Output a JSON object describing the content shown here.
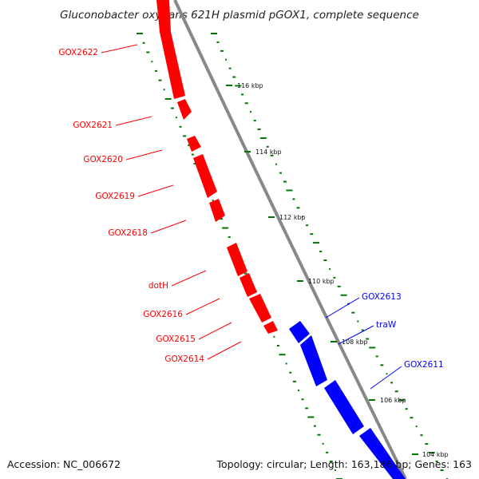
{
  "title": "Gluconobacter oxydans 621H plasmid pGOX1, complete sequence",
  "footer": {
    "accession": "Accession: NC_006672",
    "summary": "Topology: circular; Length: 163,186 bp; Genes: 163"
  },
  "colors": {
    "forward_strand": "#ff0000",
    "reverse_strand": "#0000ff",
    "backbone": "#888888",
    "gc_skew": "#007700"
  },
  "ticks": [
    "116 kbp",
    "114 kbp",
    "112 kbp",
    "110 kbp",
    "108 kbp",
    "106 kbp",
    "104 kbp"
  ],
  "genes_forward": [
    "GOX2622",
    "GOX2621",
    "GOX2620",
    "GOX2619",
    "GOX2618",
    "dotH",
    "GOX2616",
    "GOX2615",
    "GOX2614"
  ],
  "genes_reverse": [
    "GOX2613",
    "traW",
    "GOX2611"
  ]
}
